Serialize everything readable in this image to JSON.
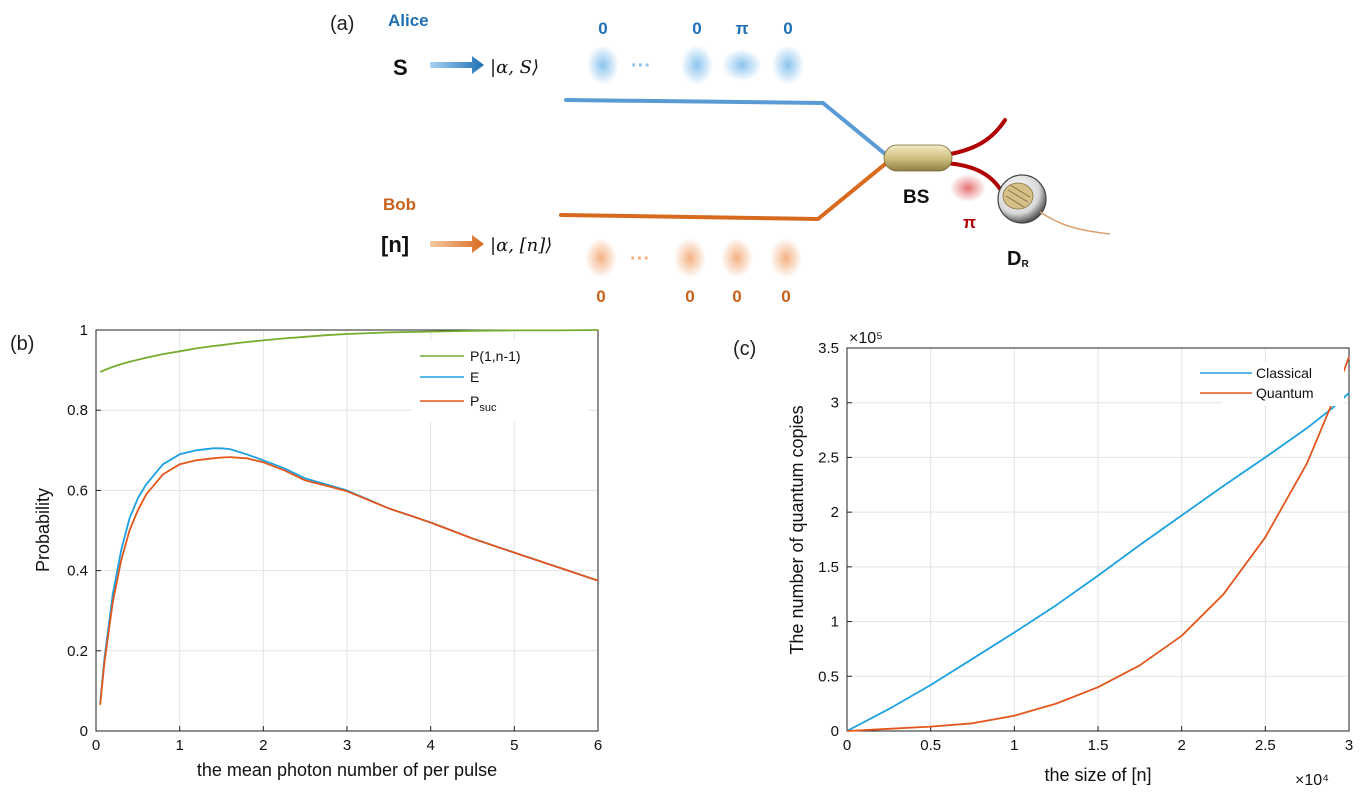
{
  "panel_a": {
    "label": "(a)",
    "alice": "Alice",
    "bob": "Bob",
    "alice_input": "S",
    "bob_input": "[n]",
    "alice_state": "|α, S⟩",
    "bob_state": "|α, [n]⟩",
    "alice_phases": [
      "0",
      "0",
      "π",
      "0"
    ],
    "bob_phases": [
      "0",
      "0",
      "0",
      "0"
    ],
    "ellipsis": "···",
    "bs_label": "BS",
    "detector_label": "D",
    "detector_sub": "R",
    "output_phase": "π",
    "colors": {
      "alice": "#1f6fb5",
      "bob": "#c8621b",
      "red": "#b00000"
    }
  },
  "chart_data": [
    {
      "type": "line",
      "panel_label": "(b)",
      "xlabel": "the mean photon number of per pulse",
      "ylabel": "Probability",
      "xlim": [
        0,
        6
      ],
      "ylim": [
        0,
        1
      ],
      "xticks": [
        "0",
        "1",
        "2",
        "3",
        "4",
        "5",
        "6"
      ],
      "yticks": [
        "0",
        "0.2",
        "0.4",
        "0.6",
        "0.8",
        "1"
      ],
      "grid": true,
      "legend_position": "top-right",
      "x": [
        0.05,
        0.1,
        0.2,
        0.3,
        0.4,
        0.5,
        0.6,
        0.8,
        1.0,
        1.2,
        1.4,
        1.5,
        1.6,
        1.8,
        2.0,
        2.25,
        2.5,
        2.75,
        3.0,
        3.5,
        4.0,
        4.5,
        5.0,
        5.5,
        6.0
      ],
      "series": [
        {
          "name": "P(1,n-1)",
          "color": "#77ac30",
          "values": [
            0.895,
            0.9,
            0.908,
            0.915,
            0.921,
            0.926,
            0.931,
            0.94,
            0.947,
            0.954,
            0.96,
            0.962,
            0.965,
            0.97,
            0.974,
            0.979,
            0.983,
            0.987,
            0.99,
            0.994,
            0.996,
            0.998,
            0.999,
            0.999,
            1.0
          ]
        },
        {
          "name": "E",
          "color": "#1ba1e2",
          "values": [
            0.07,
            0.18,
            0.34,
            0.45,
            0.53,
            0.58,
            0.615,
            0.665,
            0.69,
            0.7,
            0.705,
            0.705,
            0.703,
            0.69,
            0.675,
            0.655,
            0.63,
            0.615,
            0.6,
            0.555,
            0.52,
            0.48,
            0.445,
            0.41,
            0.375
          ]
        },
        {
          "name": "P_suc",
          "color": "#e3561c",
          "values": [
            0.065,
            0.17,
            0.32,
            0.425,
            0.5,
            0.55,
            0.59,
            0.64,
            0.665,
            0.675,
            0.68,
            0.682,
            0.683,
            0.68,
            0.67,
            0.65,
            0.625,
            0.612,
            0.598,
            0.555,
            0.52,
            0.48,
            0.445,
            0.41,
            0.375
          ]
        }
      ]
    },
    {
      "type": "line",
      "panel_label": "(c)",
      "xlabel": "the size of [n]",
      "ylabel": "The number of quantum copies",
      "x_multiplier": "×10⁴",
      "y_multiplier": "×10⁵",
      "xlim": [
        0,
        3
      ],
      "ylim": [
        0,
        3.5
      ],
      "xticks": [
        "0",
        "0.5",
        "1",
        "1.5",
        "2",
        "2.5",
        "3"
      ],
      "yticks": [
        "0",
        "0.5",
        "1",
        "1.5",
        "2",
        "2.5",
        "3",
        "3.5"
      ],
      "grid": true,
      "legend_position": "top-right",
      "x": [
        0,
        0.25,
        0.5,
        0.75,
        1.0,
        1.25,
        1.5,
        1.75,
        2.0,
        2.25,
        2.5,
        2.75,
        2.9,
        3.0
      ],
      "series": [
        {
          "name": "Classical",
          "color": "#1ba1e2",
          "values": [
            0,
            0.2,
            0.42,
            0.66,
            0.9,
            1.15,
            1.42,
            1.7,
            1.97,
            2.24,
            2.5,
            2.77,
            2.95,
            3.09
          ]
        },
        {
          "name": "Quantum",
          "color": "#e3561c",
          "values": [
            0,
            0.02,
            0.04,
            0.07,
            0.14,
            0.25,
            0.4,
            0.6,
            0.87,
            1.25,
            1.77,
            2.45,
            3.0,
            3.42
          ]
        }
      ]
    }
  ]
}
